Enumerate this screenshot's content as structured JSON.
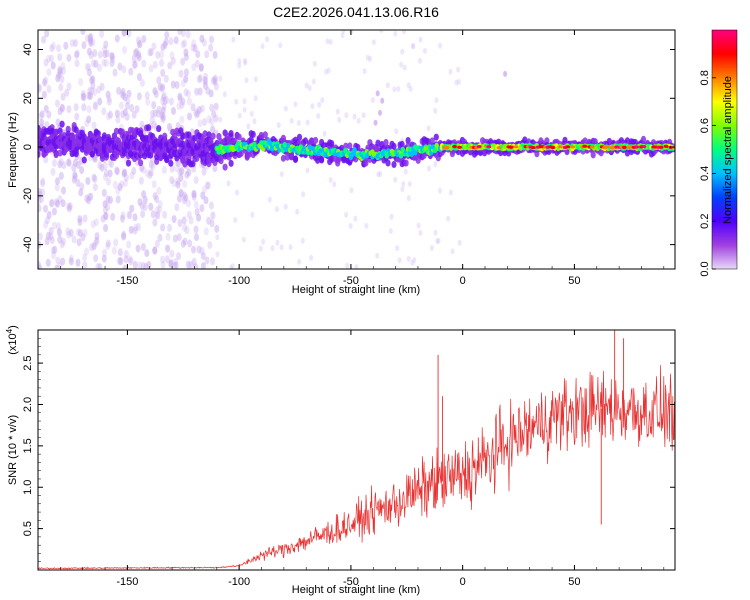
{
  "title": "C2E2.2026.041.13.06.R16",
  "chart_data": [
    {
      "type": "heatmap",
      "xlabel": "Height of straight line (km)",
      "ylabel": "Frequency (Hz)",
      "xlim": [
        -190,
        95
      ],
      "ylim": [
        -50,
        48
      ],
      "xticks": [
        -150,
        -100,
        -50,
        0,
        50
      ],
      "yticks": [
        -40,
        -20,
        0,
        20,
        40
      ],
      "colorbar": {
        "label": "Normalized spectral amplitude",
        "range": [
          0,
          1
        ],
        "ticks": [
          0.0,
          0.2,
          0.4,
          0.6,
          0.8
        ],
        "tick_labels": [
          "0.0",
          "0.2",
          "0.4",
          "0.6",
          "0.8"
        ],
        "colormap": [
          "#e8d8f8",
          "#a040e0",
          "#5000ff",
          "#0040ff",
          "#00c0ff",
          "#00ff80",
          "#80ff00",
          "#ffff00",
          "#ff8000",
          "#ff0000",
          "#ff0080"
        ]
      },
      "ridge_center": {
        "x": [
          -190,
          -150,
          -110,
          -90,
          -70,
          -50,
          -35,
          -25,
          -10,
          0,
          20,
          50,
          95
        ],
        "y": [
          2,
          1,
          -1,
          1,
          -1,
          -3,
          -3,
          -2,
          0,
          0,
          0,
          0,
          0
        ]
      }
    },
    {
      "type": "line",
      "xlabel": "Height of straight line (km)",
      "ylabel": "SNR (10 * v/v)",
      "scale_label": "(x10",
      "scale_exp": "4",
      "scale_close": ")",
      "xlim": [
        -190,
        95
      ],
      "ylim": [
        0,
        2.9
      ],
      "xticks": [
        -150,
        -100,
        -50,
        0,
        50
      ],
      "yticks": [
        0.5,
        1.0,
        1.5,
        2.0,
        2.5
      ],
      "ytick_labels": [
        "0.5",
        "1.0",
        "1.5",
        "2.0",
        "2.5"
      ],
      "series_color": "#e83030",
      "trend": {
        "x": [
          -190,
          -110,
          -100,
          -90,
          -80,
          -70,
          -60,
          -50,
          -40,
          -30,
          -20,
          -12,
          -5,
          0,
          10,
          20,
          30,
          40,
          50,
          60,
          70,
          80,
          95
        ],
        "y": [
          0.02,
          0.03,
          0.05,
          0.18,
          0.25,
          0.35,
          0.45,
          0.55,
          0.7,
          0.8,
          0.95,
          1.05,
          1.1,
          1.15,
          1.3,
          1.55,
          1.7,
          1.85,
          1.9,
          1.95,
          1.95,
          1.92,
          1.9
        ]
      },
      "spikes": [
        {
          "x": -11,
          "y": 2.6
        },
        {
          "x": -9,
          "y": 2.1
        },
        {
          "x": 7,
          "y": 1.6
        },
        {
          "x": 68,
          "y": 2.9
        },
        {
          "x": 72,
          "y": 2.8
        },
        {
          "x": 62,
          "y": 0.55
        }
      ]
    }
  ]
}
